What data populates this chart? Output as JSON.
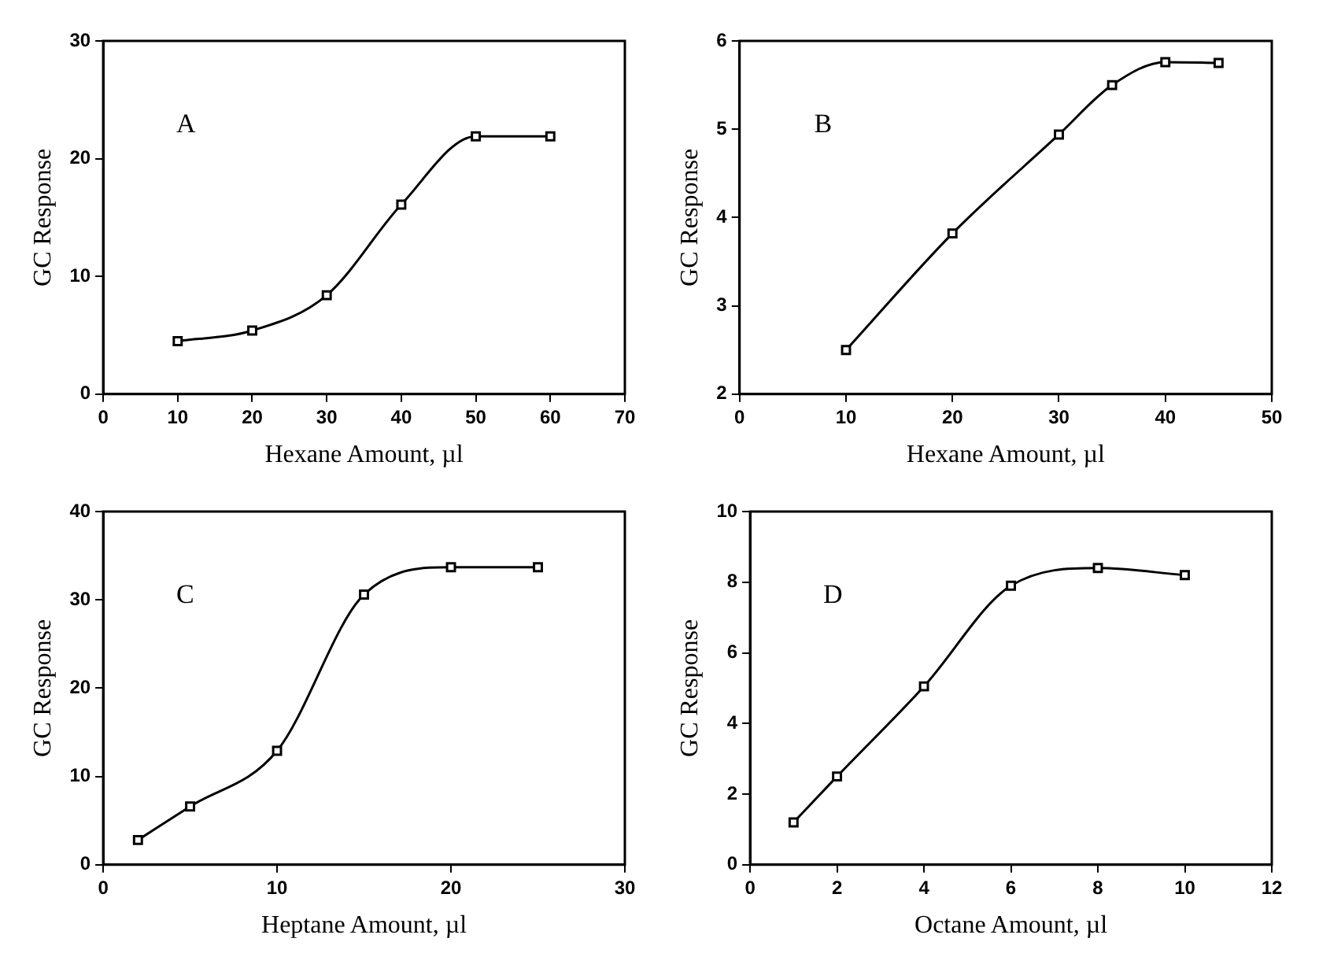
{
  "chart_data": [
    {
      "type": "line",
      "annotations": [
        "A"
      ],
      "xlabel": "Hexane Amount, µl",
      "ylabel": "GC Response",
      "x": [
        10,
        20,
        30,
        40,
        50,
        60
      ],
      "values": [
        4.5,
        5.4,
        8.4,
        16.1,
        21.9,
        21.9
      ],
      "color": "#000000",
      "marker": "square",
      "xlim": [
        0,
        70
      ],
      "xticks": [
        0,
        10,
        20,
        30,
        40,
        50,
        60,
        70
      ],
      "ylim": [
        0,
        30
      ],
      "yticks": [
        0,
        10,
        20,
        30
      ],
      "grid": false,
      "legend": false
    },
    {
      "type": "line",
      "annotations": [
        "B"
      ],
      "xlabel": "Hexane Amount, µl",
      "ylabel": "GC Response",
      "x": [
        10,
        20,
        30,
        35,
        40,
        45
      ],
      "values": [
        2.5,
        3.82,
        4.94,
        5.5,
        5.76,
        5.75
      ],
      "color": "#000000",
      "marker": "square",
      "xlim": [
        0,
        50
      ],
      "xticks": [
        0,
        10,
        20,
        30,
        40,
        50
      ],
      "ylim": [
        2,
        6
      ],
      "yticks": [
        2,
        3,
        4,
        5,
        6
      ],
      "grid": false,
      "legend": false
    },
    {
      "type": "line",
      "annotations": [
        "C"
      ],
      "xlabel": "Heptane Amount, µl",
      "ylabel": "GC Response",
      "x": [
        2,
        5,
        10,
        15,
        20,
        25
      ],
      "values": [
        2.8,
        6.6,
        12.9,
        30.6,
        33.7,
        33.7
      ],
      "color": "#000000",
      "marker": "square",
      "xlim": [
        0,
        30
      ],
      "xticks": [
        0,
        10,
        20,
        30
      ],
      "ylim": [
        0,
        40
      ],
      "yticks": [
        0,
        10,
        20,
        30,
        40
      ],
      "grid": false,
      "legend": false
    },
    {
      "type": "line",
      "annotations": [
        "D"
      ],
      "xlabel": "Octane Amount, µl",
      "ylabel": "GC Response",
      "x": [
        1,
        2,
        4,
        6,
        8,
        10
      ],
      "values": [
        1.2,
        2.5,
        5.05,
        7.9,
        8.4,
        8.2
      ],
      "color": "#000000",
      "marker": "square",
      "xlim": [
        0,
        12
      ],
      "xticks": [
        0,
        2,
        4,
        6,
        8,
        10,
        12
      ],
      "ylim": [
        0,
        10
      ],
      "yticks": [
        0,
        2,
        4,
        6,
        8,
        10
      ],
      "grid": false,
      "legend": false
    }
  ]
}
